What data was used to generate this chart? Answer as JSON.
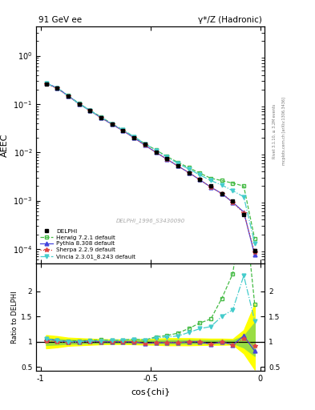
{
  "title_left": "91 GeV ee",
  "title_right": "γ*/Z (Hadronic)",
  "ylabel_main": "AEEC",
  "ylabel_ratio": "Ratio to DELPHI",
  "xlabel": "cos{chi}",
  "right_label1": "Rivet 3.1.10, ≥ 3.2M events",
  "right_label2": "mcplots.cern.ch [arXiv:1306.3436]",
  "watermark": "DELPHI_1996_S3430090",
  "ylim_main": [
    5e-05,
    4.0
  ],
  "ylim_ratio": [
    0.42,
    2.55
  ],
  "xlim": [
    -1.02,
    0.02
  ],
  "cos_chi": [
    -0.975,
    -0.925,
    -0.875,
    -0.825,
    -0.775,
    -0.725,
    -0.675,
    -0.625,
    -0.575,
    -0.525,
    -0.475,
    -0.425,
    -0.375,
    -0.325,
    -0.275,
    -0.225,
    -0.175,
    -0.125,
    -0.075,
    -0.025
  ],
  "delphi_y": [
    0.255,
    0.21,
    0.148,
    0.101,
    0.072,
    0.052,
    0.038,
    0.028,
    0.02,
    0.0145,
    0.0102,
    0.0073,
    0.0053,
    0.0038,
    0.0027,
    0.002,
    0.0014,
    0.00098,
    0.00052,
    9.2e-05
  ],
  "delphi_yerr": [
    0.01,
    0.008,
    0.005,
    0.004,
    0.003,
    0.002,
    0.0015,
    0.001,
    0.0008,
    0.0006,
    0.0004,
    0.0003,
    0.00022,
    0.00016,
    0.00012,
    9e-05,
    7e-05,
    5e-05,
    3e-05,
    8e-06
  ],
  "herwig_y": [
    0.27,
    0.215,
    0.15,
    0.103,
    0.074,
    0.054,
    0.039,
    0.029,
    0.021,
    0.015,
    0.0112,
    0.0082,
    0.0062,
    0.0048,
    0.0037,
    0.0029,
    0.0026,
    0.0023,
    0.002,
    0.00016
  ],
  "pythia_y": [
    0.27,
    0.215,
    0.148,
    0.101,
    0.073,
    0.052,
    0.038,
    0.028,
    0.02,
    0.014,
    0.01,
    0.0072,
    0.0052,
    0.0038,
    0.0027,
    0.0019,
    0.0014,
    0.00092,
    0.00058,
    7.5e-05
  ],
  "sherpa_y": [
    0.26,
    0.21,
    0.146,
    0.1,
    0.072,
    0.052,
    0.038,
    0.028,
    0.02,
    0.014,
    0.01,
    0.0072,
    0.0052,
    0.0038,
    0.0027,
    0.0019,
    0.0014,
    0.00092,
    0.00055,
    8.5e-05
  ],
  "vincia_y": [
    0.27,
    0.215,
    0.148,
    0.101,
    0.073,
    0.053,
    0.039,
    0.029,
    0.021,
    0.015,
    0.011,
    0.008,
    0.0059,
    0.0045,
    0.0034,
    0.0026,
    0.0021,
    0.0016,
    0.0012,
    0.00013
  ],
  "herwig_color": "#44bb44",
  "pythia_color": "#4444dd",
  "sherpa_color": "#dd4444",
  "vincia_color": "#44cccc",
  "delphi_color": "#000000",
  "ratio_band_yellow_lo": [
    0.87,
    0.89,
    0.92,
    0.93,
    0.94,
    0.95,
    0.955,
    0.955,
    0.95,
    0.945,
    0.94,
    0.93,
    0.93,
    0.93,
    0.935,
    0.94,
    0.94,
    0.945,
    0.77,
    0.45
  ],
  "ratio_band_yellow_hi": [
    1.13,
    1.11,
    1.08,
    1.07,
    1.06,
    1.05,
    1.045,
    1.045,
    1.05,
    1.055,
    1.06,
    1.07,
    1.07,
    1.07,
    1.065,
    1.06,
    1.06,
    1.055,
    1.23,
    1.75
  ],
  "ratio_band_green_lo": [
    0.935,
    0.945,
    0.96,
    0.965,
    0.97,
    0.975,
    0.977,
    0.977,
    0.975,
    0.972,
    0.97,
    0.965,
    0.965,
    0.965,
    0.967,
    0.97,
    0.97,
    0.972,
    0.885,
    0.72
  ],
  "ratio_band_green_hi": [
    1.065,
    1.055,
    1.04,
    1.035,
    1.03,
    1.025,
    1.023,
    1.023,
    1.025,
    1.028,
    1.03,
    1.035,
    1.035,
    1.035,
    1.033,
    1.03,
    1.03,
    1.028,
    1.115,
    1.38
  ]
}
